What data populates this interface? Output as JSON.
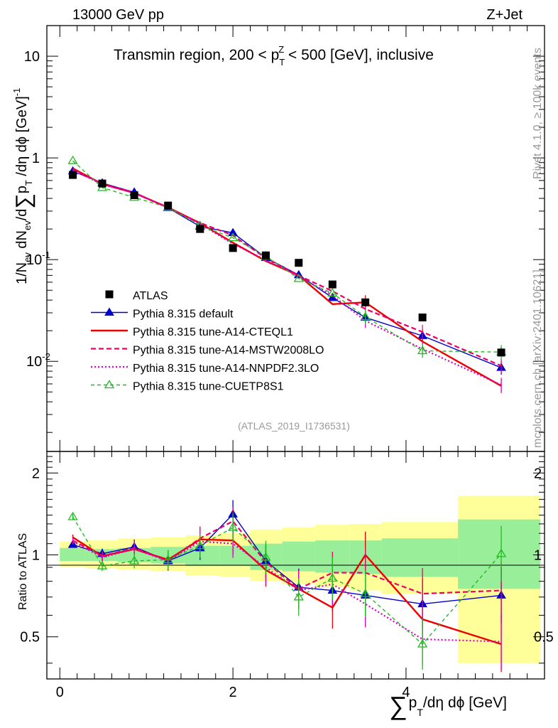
{
  "header": {
    "left": "13000 GeV pp",
    "right": "Z+Jet",
    "title": "Transmin region, 200 < p",
    "title_sub": "T",
    "title_sup": "Z",
    "title_end": " < 500 [GeV], inclusive",
    "side_top": "Rivet 4.1.0, ≥ 100k events",
    "side_bottom": "mcplots.cern.ch [arXiv:2401.10621]",
    "analysis_id": "(ATLAS_2019_I1736531)"
  },
  "axes": {
    "ylabel_main": "1/N",
    "ylabel_main_full": "1/N_ev dN_ev/d∑p_T/dη dϕ [GeV]^-1",
    "ylabel_ratio": "Ratio to ATLAS",
    "xlabel_sum": "∑",
    "xlabel_p": "p",
    "xlabel_T": "T",
    "xlabel_rest": "/dη dϕ [GeV]",
    "main_ticks": [
      {
        "label": "10",
        "exp": "-2",
        "value": 0.01
      },
      {
        "label": "10",
        "exp": "-1",
        "value": 0.1
      },
      {
        "label": "1",
        "exp": "",
        "value": 1
      },
      {
        "label": "10",
        "exp": "",
        "value": 10
      }
    ],
    "ratio_ticks": [
      {
        "label": "0.5",
        "value": 0.5
      },
      {
        "label": "1",
        "value": 1
      },
      {
        "label": "2",
        "value": 2
      }
    ],
    "x_ticks": [
      {
        "label": "0",
        "value": 0
      },
      {
        "label": "2",
        "value": 2
      },
      {
        "label": "4",
        "value": 4
      }
    ]
  },
  "legend": [
    {
      "label": "ATLAS",
      "color": "#000000"
    },
    {
      "label": "Pythia 8.315 default",
      "color": "#0000cc"
    },
    {
      "label": "Pythia 8.315 tune-A14-CTEQL1",
      "color": "#ee0000"
    },
    {
      "label": "Pythia 8.315 tune-A14-MSTW2008LO",
      "color": "#ee0066"
    },
    {
      "label": "Pythia 8.315 tune-A14-NNPDF2.3LO",
      "color": "#dd00cc"
    },
    {
      "label": "Pythia 8.315 tune-CUETP8S1",
      "color": "#22bb22"
    }
  ],
  "chart_data": {
    "type": "scatter",
    "title": "Transmin region, 200 < pT^Z < 500 [GeV], inclusive",
    "xlim": [
      -0.15,
      5.6
    ],
    "ylim_main": [
      0.0013,
      20
    ],
    "ylim_ratio": [
      0.35,
      2.4
    ],
    "yscale_main": "log",
    "yscale_ratio": "log",
    "bins": [
      0,
      0.3,
      0.67,
      1.05,
      1.45,
      1.85,
      2.2,
      2.57,
      2.95,
      3.35,
      3.72,
      4.6,
      5.55
    ],
    "x": [
      0.15,
      0.49,
      0.86,
      1.25,
      1.62,
      2.0,
      2.38,
      2.76,
      3.15,
      3.53,
      4.19,
      5.1
    ],
    "atlas": [
      0.68,
      0.56,
      0.43,
      0.34,
      0.2,
      0.13,
      0.11,
      0.093,
      0.057,
      0.038,
      0.027,
      0.0122
    ],
    "band_green": [
      [
        0.95,
        1.06
      ],
      [
        0.95,
        1.05
      ],
      [
        0.94,
        1.06
      ],
      [
        0.93,
        1.07
      ],
      [
        0.91,
        1.08
      ],
      [
        0.91,
        1.08
      ],
      [
        0.88,
        1.1
      ],
      [
        0.87,
        1.12
      ],
      [
        0.86,
        1.13
      ],
      [
        0.85,
        1.13
      ],
      [
        0.83,
        1.15
      ],
      [
        0.75,
        1.35
      ]
    ],
    "band_yellow": [
      [
        0.9,
        1.12
      ],
      [
        0.89,
        1.13
      ],
      [
        0.88,
        1.15
      ],
      [
        0.87,
        1.16
      ],
      [
        0.84,
        1.18
      ],
      [
        0.83,
        1.2
      ],
      [
        0.8,
        1.24
      ],
      [
        0.78,
        1.26
      ],
      [
        0.76,
        1.29
      ],
      [
        0.74,
        1.3
      ],
      [
        0.72,
        1.32
      ],
      [
        0.4,
        1.65
      ]
    ],
    "series": [
      {
        "name": "Pythia 8.315 default",
        "ratio": [
          1.09,
          1.01,
          1.07,
          0.95,
          1.06,
          1.41,
          0.95,
          0.76,
          0.74,
          0.71,
          0.66,
          0.71
        ]
      },
      {
        "name": "Pythia 8.315 tune-A14-CTEQL1",
        "ratio": [
          1.16,
          0.99,
          1.05,
          0.96,
          1.14,
          1.13,
          0.88,
          0.75,
          0.64,
          1.0,
          0.58,
          0.47
        ]
      },
      {
        "name": "Pythia 8.315 tune-A14-MSTW2008LO",
        "ratio": [
          1.13,
          0.99,
          1.06,
          0.95,
          1.15,
          1.33,
          0.94,
          0.75,
          0.86,
          0.86,
          0.72,
          0.74
        ]
      },
      {
        "name": "Pythia 8.315 tune-A14-NNPDF2.3LO",
        "ratio": [
          1.12,
          0.98,
          1.05,
          0.95,
          1.12,
          1.1,
          0.9,
          0.74,
          0.78,
          0.66,
          0.49,
          0.48
        ]
      },
      {
        "name": "Pythia 8.315 tune-CUETP8S1",
        "ratio": [
          1.38,
          0.91,
          0.95,
          0.96,
          1.08,
          1.26,
          0.98,
          0.7,
          0.82,
          0.72,
          0.47,
          1.01
        ]
      }
    ]
  }
}
